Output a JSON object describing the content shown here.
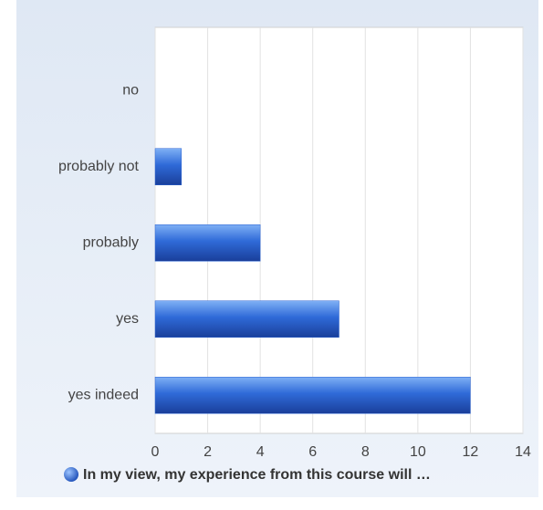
{
  "chart_data": {
    "type": "bar",
    "orientation": "horizontal",
    "categories": [
      "no",
      "probably not",
      "probably",
      "yes",
      "yes indeed"
    ],
    "series": [
      {
        "name": "In my view, my experience from this course will …",
        "color": "#2a62d0",
        "values": [
          0,
          1,
          4,
          7,
          12
        ]
      }
    ],
    "xlim": [
      0,
      14
    ],
    "xticks": [
      0,
      2,
      4,
      6,
      8,
      10,
      12,
      14
    ],
    "grid": true,
    "legend": "bottom"
  }
}
